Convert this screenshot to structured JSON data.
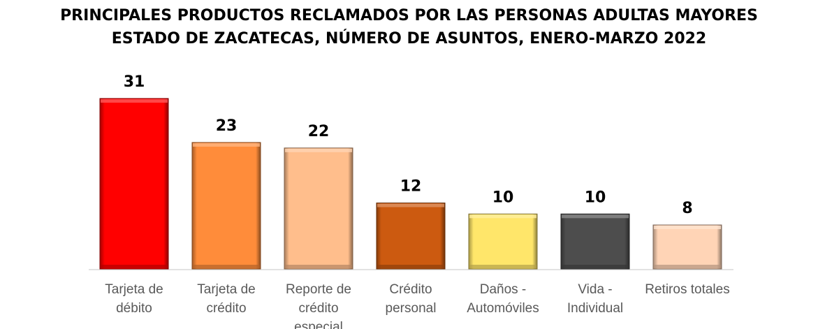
{
  "chart_data": {
    "type": "bar",
    "title_lines": [
      "PRINCIPALES PRODUCTOS RECLAMADOS POR LAS PERSONAS ADULTAS MAYORES",
      "ESTADO DE ZACATECAS, NÚMERO DE ASUNTOS, ENERO-MARZO 2022"
    ],
    "categories": [
      [
        "Tarjeta de",
        "débito"
      ],
      [
        "Tarjeta de",
        "crédito"
      ],
      [
        "Reporte de",
        "crédito",
        "especial"
      ],
      [
        "Crédito",
        "personal"
      ],
      [
        "Daños -",
        "Automóviles"
      ],
      [
        "Vida -",
        "Individual"
      ],
      [
        "Retiros totales"
      ]
    ],
    "values": [
      31,
      23,
      22,
      12,
      10,
      10,
      8
    ],
    "colors": [
      "#ff0000",
      "#ff8c3a",
      "#ffbe8c",
      "#cc5a10",
      "#ffe66a",
      "#4d4d4d",
      "#ffd4b6"
    ],
    "ylim": [
      0,
      31
    ],
    "grid": false,
    "legend": "none",
    "xlabel": "",
    "ylabel": ""
  }
}
